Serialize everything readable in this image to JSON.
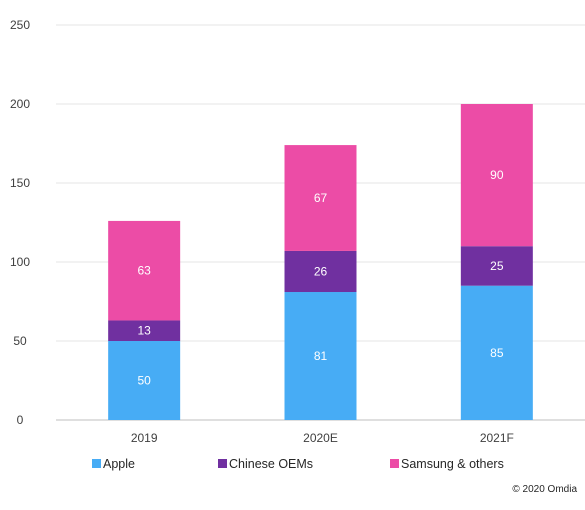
{
  "chart_data": {
    "type": "bar",
    "stacked": true,
    "categories": [
      "2019",
      "2020E",
      "2021F"
    ],
    "series": [
      {
        "name": "Apple",
        "values": [
          50,
          81,
          85
        ],
        "color": "#47acf5"
      },
      {
        "name": "Chinese OEMs",
        "values": [
          13,
          26,
          25
        ],
        "color": "#7030a0"
      },
      {
        "name": "Samsung & others",
        "values": [
          63,
          67,
          90
        ],
        "color": "#ec4ca6"
      }
    ],
    "ylim": [
      0,
      250
    ],
    "yticks": [
      0,
      50,
      100,
      150,
      200,
      250
    ],
    "grid": true,
    "legend_position": "bottom",
    "title": "",
    "xlabel": "",
    "ylabel": ""
  },
  "footer": {
    "copyright": "© 2020 Omdia"
  }
}
